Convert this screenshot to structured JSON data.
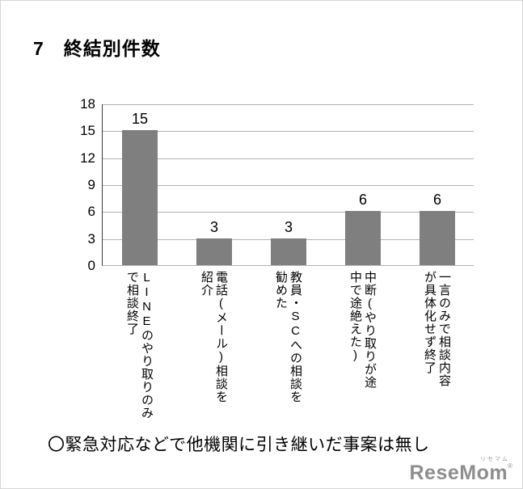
{
  "page": {
    "title": "7　終結別件数",
    "note": "〇緊急対応などで他機関に引き継いだ事案は無し",
    "logo": {
      "ruby": "リセマム",
      "main": "ReseMom",
      "mark": "®"
    }
  },
  "chart_data": {
    "type": "bar",
    "title": "",
    "xlabel": "",
    "ylabel": "",
    "categories": [
      "LINEのやり取りのみで相談終了",
      "電話(メール)相談を紹介",
      "教員・SCへの相談を勧めた",
      "中断(やり取りが途中で途絶えた)",
      "一言のみで相談内容が具体化せず終了"
    ],
    "category_lines": [
      [
        "LINEのやり取りのみ",
        "で相談終了"
      ],
      [
        "電話(メール)相談を",
        "紹介"
      ],
      [
        "教員・SCへの相談を",
        "勧めた"
      ],
      [
        "中断(やり取りが途",
        "中で途絶えた)"
      ],
      [
        "一言のみで相談内容",
        "が具体化せず終了"
      ]
    ],
    "values": [
      15,
      3,
      3,
      6,
      6
    ],
    "ylim": [
      0,
      18
    ],
    "ytick_step": 3,
    "yticks": [
      0,
      3,
      6,
      9,
      12,
      15,
      18
    ],
    "grid": true,
    "legend": false,
    "data_labels": true,
    "bar_color": "#7f7f7f",
    "gridline_color": "#b3b3b3",
    "axis_color": "#3a3a3a"
  }
}
